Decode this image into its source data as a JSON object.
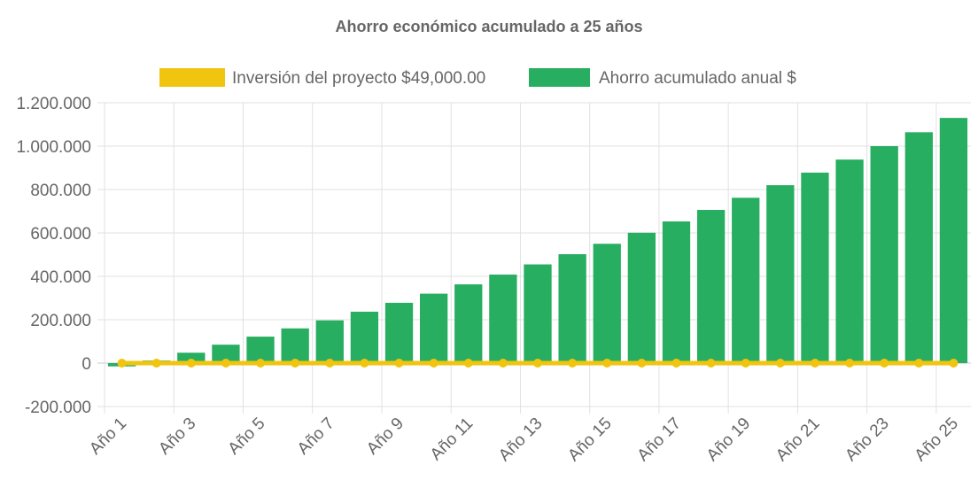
{
  "chart_data": {
    "type": "bar",
    "title": "Ahorro económico acumulado a 25 años",
    "xlabel": "",
    "ylabel": "",
    "ylim": [
      -200000,
      1200000
    ],
    "yticks": [
      -200000,
      0,
      200000,
      400000,
      600000,
      800000,
      1000000,
      1200000
    ],
    "ytick_labels": [
      "-200.000",
      "0",
      "200.000",
      "400.000",
      "600.000",
      "800.000",
      "1.000.000",
      "1.200.000"
    ],
    "categories": [
      "Año 1",
      "Año 2",
      "Año 3",
      "Año 4",
      "Año 5",
      "Año 6",
      "Año 7",
      "Año 8",
      "Año 9",
      "Año 10",
      "Año 11",
      "Año 12",
      "Año 13",
      "Año 14",
      "Año 15",
      "Año 16",
      "Año 17",
      "Año 18",
      "Año 19",
      "Año 20",
      "Año 21",
      "Año 22",
      "Año 23",
      "Año 24",
      "Año 25"
    ],
    "x_tick_labels": [
      "Año 1",
      "Año 3",
      "Año 5",
      "Año 7",
      "Año 9",
      "Año 11",
      "Año 13",
      "Año 15",
      "Año 17",
      "Año 19",
      "Año 21",
      "Año 23",
      "Año 25"
    ],
    "legend_position": "top",
    "series": [
      {
        "name": "Inversión del proyecto $49,000.00",
        "type": "line",
        "color": "#f1c40f",
        "values": [
          0,
          0,
          0,
          0,
          0,
          0,
          0,
          0,
          0,
          0,
          0,
          0,
          0,
          0,
          0,
          0,
          0,
          0,
          0,
          0,
          0,
          0,
          0,
          0,
          0
        ]
      },
      {
        "name": "Ahorro acumulado anual $",
        "type": "bar",
        "color": "#27ae60",
        "values": [
          -15000,
          12000,
          48000,
          85000,
          122000,
          160000,
          197000,
          237000,
          278000,
          320000,
          363000,
          408000,
          455000,
          502000,
          550000,
          601000,
          653000,
          706000,
          762000,
          820000,
          878000,
          938000,
          1000000,
          1064000,
          1130000
        ]
      }
    ]
  }
}
